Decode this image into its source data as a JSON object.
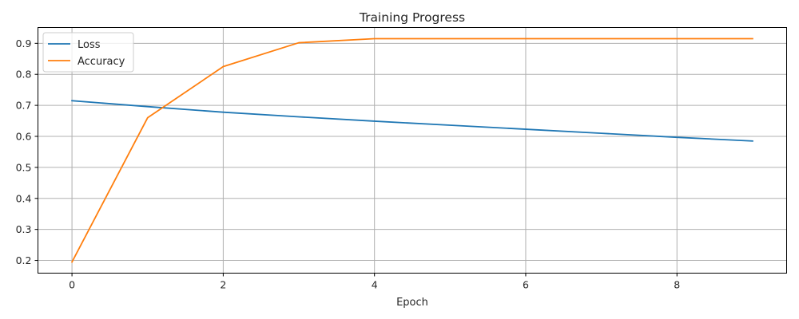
{
  "chart_data": {
    "type": "line",
    "title": "Training Progress",
    "xlabel": "Epoch",
    "ylabel": "",
    "x": [
      0,
      1,
      2,
      3,
      4,
      5,
      6,
      7,
      8,
      9
    ],
    "xlim": [
      -0.45,
      9.45
    ],
    "ylim": [
      0.159,
      0.951
    ],
    "xticks": [
      0,
      2,
      4,
      6,
      8
    ],
    "yticks": [
      0.2,
      0.3,
      0.4,
      0.5,
      0.6,
      0.7,
      0.8,
      0.9
    ],
    "grid": true,
    "legend": "upper-left",
    "series": [
      {
        "name": "Loss",
        "color": "#1f77b4",
        "values": [
          0.715,
          0.696,
          0.678,
          0.663,
          0.649,
          0.636,
          0.623,
          0.61,
          0.597,
          0.585
        ]
      },
      {
        "name": "Accuracy",
        "color": "#ff7f0e",
        "values": [
          0.195,
          0.66,
          0.825,
          0.902,
          0.915,
          0.915,
          0.915,
          0.915,
          0.915,
          0.915
        ]
      }
    ]
  }
}
